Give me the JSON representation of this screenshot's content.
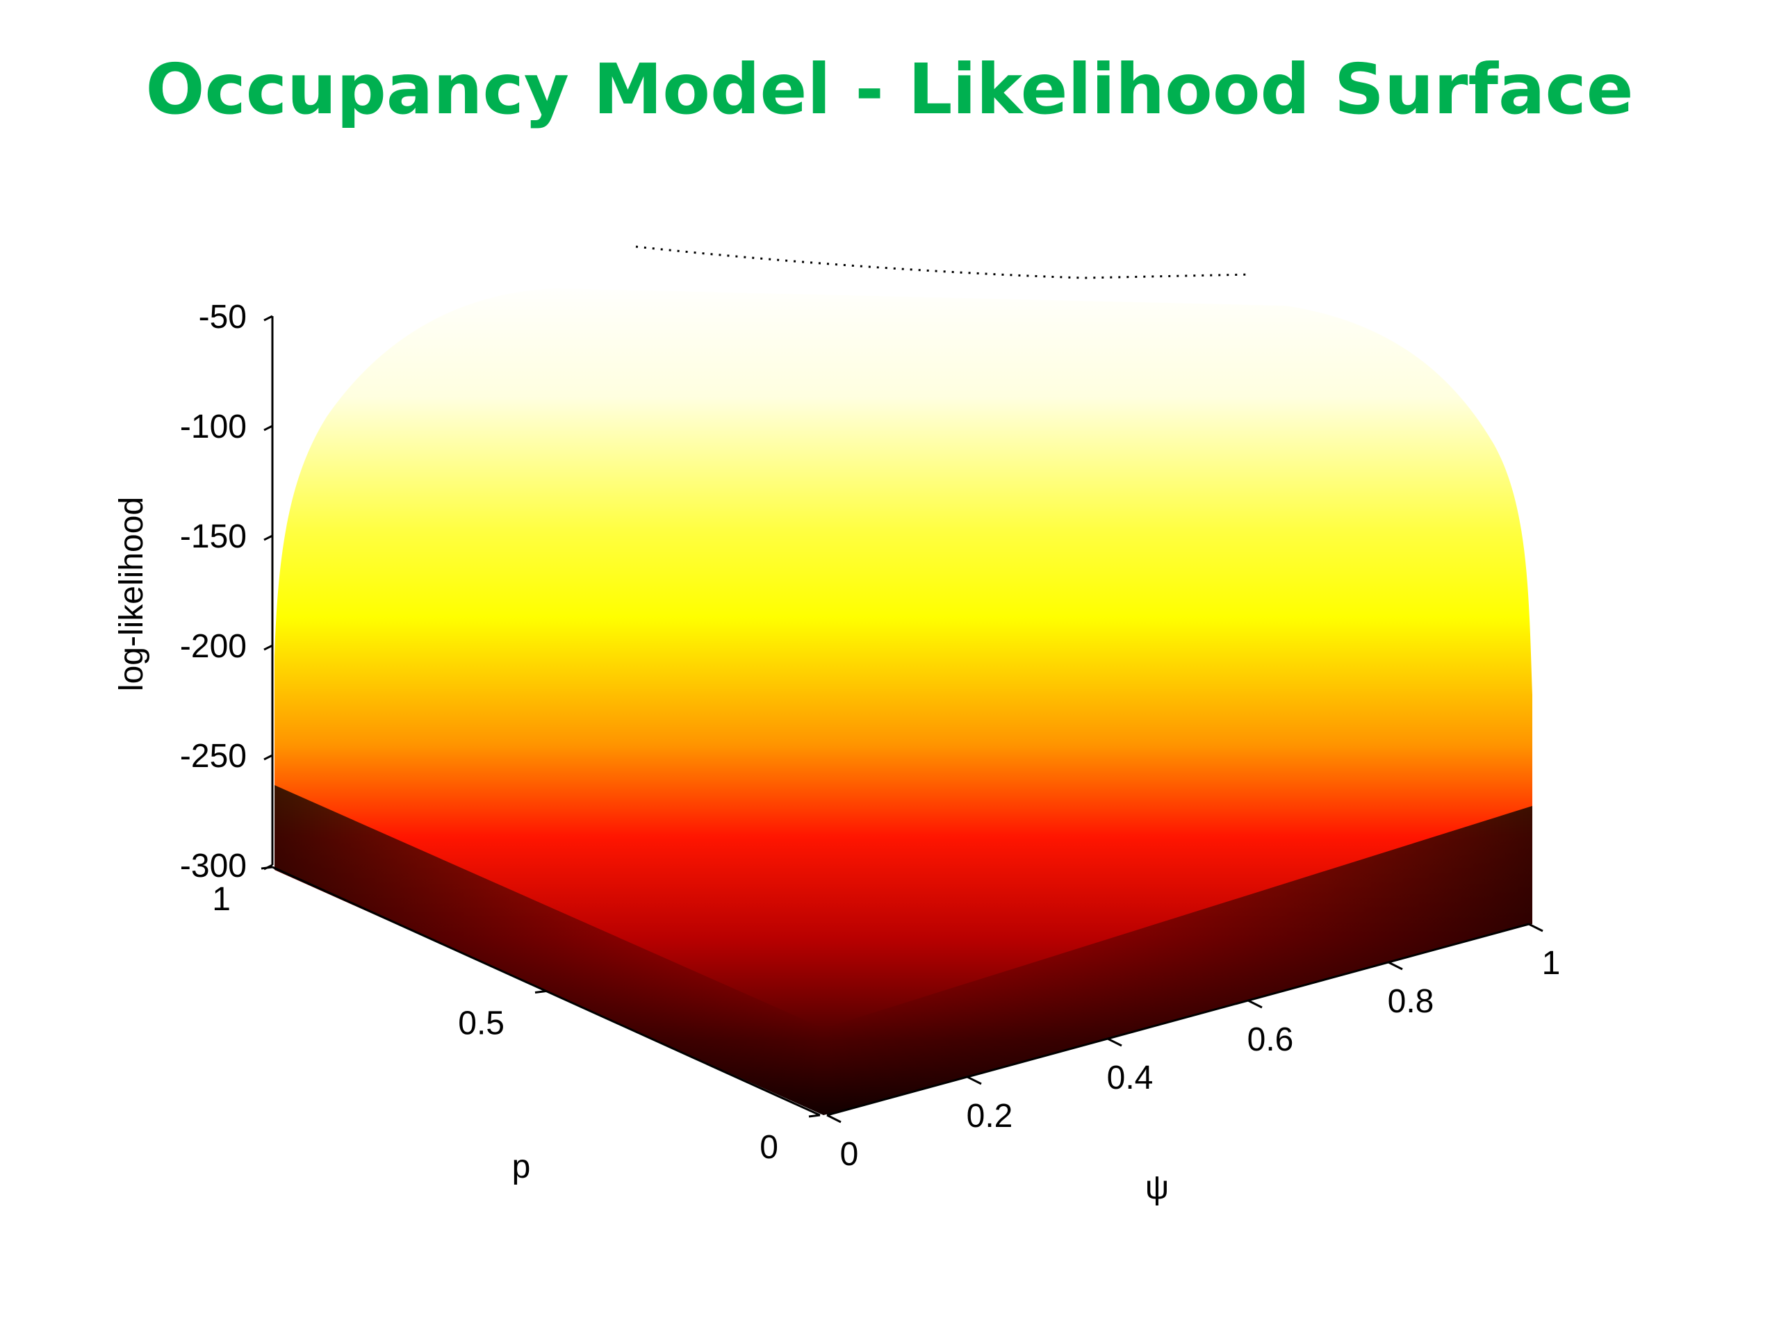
{
  "title": "Occupancy Model - Likelihood Surface",
  "chart_data": {
    "type": "surface",
    "title": "Occupancy Model - Likelihood Surface",
    "colormap": "hot",
    "xlabel": "ψ",
    "ylabel": "p",
    "zlabel": "log-likelihood",
    "xlim": [
      0,
      1
    ],
    "ylim": [
      0,
      1
    ],
    "zlim": [
      -300,
      -50
    ],
    "x_ticks": [
      "0",
      "0.2",
      "0.4",
      "0.6",
      "0.8",
      "1"
    ],
    "y_ticks": [
      "0",
      "0.5",
      "1"
    ],
    "z_ticks": [
      "-50",
      "-100",
      "-150",
      "-200",
      "-250",
      "-300"
    ],
    "surface_samples": {
      "x": [
        0.0,
        0.25,
        0.5,
        0.75,
        1.0
      ],
      "y": [
        0.0,
        0.25,
        0.5,
        0.75,
        1.0
      ],
      "z_at_x0": [
        -300,
        -300,
        -300,
        -300,
        -300
      ],
      "z_at_y0": [
        -300,
        -300,
        -300,
        -300,
        -300
      ],
      "z_at_x1_y1": -230,
      "max_region": {
        "x": 0.6,
        "y": 0.6,
        "z": -50
      }
    },
    "grid": false,
    "legend": "none"
  }
}
